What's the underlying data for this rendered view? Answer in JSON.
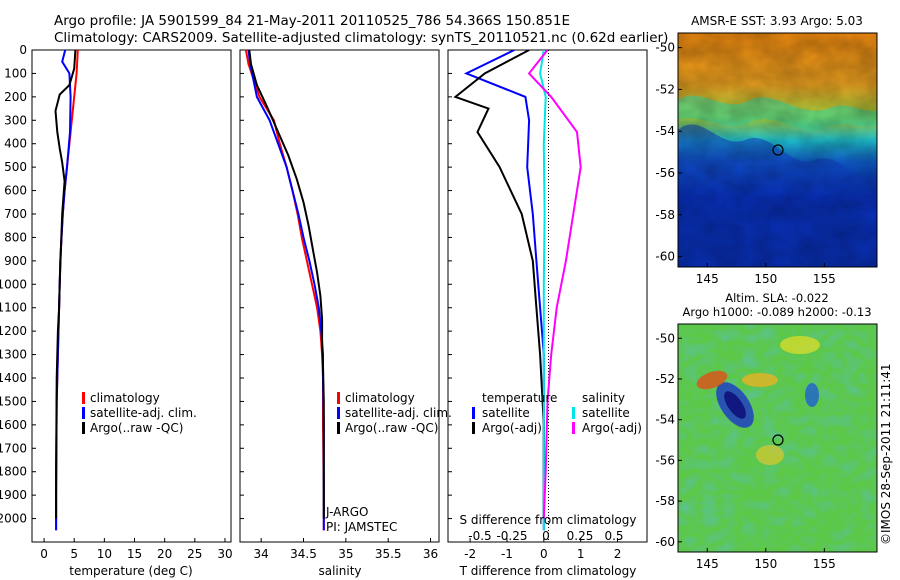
{
  "header": {
    "line1": "Argo profile: JA 5901599_84 21-May-2011 20110525_786 54.366S 150.851E",
    "line2": "Climatology: CARS2009. Satellite-adjusted climatology: synTS_20110521.nc (0.62d earlier)"
  },
  "credit": "©IMOS 28-Sep-2011 21:11:41",
  "colors": {
    "climatology": "#ff0000",
    "satellite": "#0000ff",
    "argo": "#000000",
    "salinity_satellite": "#00e6e6",
    "salinity_argo": "#ff00ff"
  },
  "chart_data": [
    {
      "type": "line",
      "name": "temperature",
      "xlabel": "temperature (deg C)",
      "ylabel": "",
      "xlim": [
        -2,
        31
      ],
      "ylim": [
        2100,
        0
      ],
      "xticks": [
        "0",
        "5",
        "10",
        "15",
        "20",
        "25",
        "30"
      ],
      "yticks": [
        "0",
        "100",
        "200",
        "300",
        "400",
        "500",
        "600",
        "700",
        "800",
        "900",
        "1000",
        "1100",
        "1200",
        "1300",
        "1400",
        "1500",
        "1600",
        "1700",
        "1800",
        "1900",
        "2000"
      ],
      "legend": [
        "climatology",
        "satellite-adj. clim.",
        "Argo(..raw -QC)"
      ],
      "series": [
        {
          "name": "climatology",
          "x": [
            5.6,
            5.4,
            5.0,
            4.6,
            4.2,
            3.8,
            3.4,
            3.1,
            2.9,
            2.7,
            2.6,
            2.5,
            2.4,
            2.3,
            2.2,
            2.1,
            2.05,
            2.0,
            2.0
          ],
          "y": [
            0,
            100,
            200,
            300,
            400,
            500,
            600,
            700,
            800,
            900,
            1000,
            1100,
            1200,
            1300,
            1400,
            1500,
            1700,
            1900,
            2050
          ]
        },
        {
          "name": "satellite-adj. clim.",
          "x": [
            3.5,
            3.0,
            4.2,
            4.4,
            4.3,
            3.8,
            3.4,
            3.1,
            2.9,
            2.7,
            2.6,
            2.5,
            2.4,
            2.3,
            2.2,
            2.1,
            2.05,
            2.0,
            2.0
          ],
          "y": [
            0,
            50,
            100,
            200,
            350,
            500,
            600,
            700,
            800,
            900,
            1000,
            1100,
            1200,
            1300,
            1400,
            1500,
            1700,
            1900,
            2050
          ]
        },
        {
          "name": "Argo(..raw -QC)",
          "x": [
            5.2,
            5.0,
            4.2,
            2.6,
            1.9,
            2.2,
            2.6,
            3.0,
            3.4,
            3.0,
            2.8,
            2.6,
            2.5,
            2.3,
            2.2,
            2.1,
            2.05,
            2.0,
            2.0
          ],
          "y": [
            0,
            80,
            150,
            190,
            260,
            350,
            420,
            480,
            560,
            700,
            850,
            1000,
            1100,
            1200,
            1300,
            1400,
            1600,
            1800,
            2000
          ]
        }
      ]
    },
    {
      "type": "line",
      "name": "salinity",
      "xlabel": "salinity",
      "ylabel": "",
      "xlim": [
        33.75,
        36.1
      ],
      "ylim": [
        2100,
        0
      ],
      "xticks": [
        "34",
        "34.5",
        "35",
        "35.5",
        "36"
      ],
      "legend": [
        "climatology",
        "satellite-adj. clim.",
        "Argo(..raw -QC)"
      ],
      "annotations": [
        "J-ARGO",
        "PI: JAMSTEC"
      ],
      "series": [
        {
          "name": "climatology",
          "x": [
            33.82,
            33.85,
            33.98,
            34.15,
            34.22,
            34.3,
            34.37,
            34.43,
            34.48,
            34.54,
            34.6,
            34.66,
            34.7,
            34.72,
            34.73,
            34.73,
            34.74,
            34.74
          ],
          "y": [
            0,
            60,
            200,
            300,
            400,
            500,
            600,
            700,
            800,
            900,
            1000,
            1100,
            1200,
            1300,
            1400,
            1600,
            1900,
            2050
          ]
        },
        {
          "name": "satellite-adj. clim.",
          "x": [
            33.85,
            33.87,
            33.95,
            34.1,
            34.2,
            34.3,
            34.37,
            34.44,
            34.5,
            34.57,
            34.63,
            34.68,
            34.71,
            34.73,
            34.73,
            34.74,
            34.74,
            34.74
          ],
          "y": [
            0,
            60,
            200,
            300,
            400,
            500,
            600,
            700,
            800,
            900,
            1000,
            1100,
            1200,
            1300,
            1400,
            1600,
            1900,
            2050
          ]
        },
        {
          "name": "Argo(..raw -QC)",
          "x": [
            33.86,
            33.88,
            33.95,
            34.08,
            34.2,
            34.32,
            34.42,
            34.5,
            34.56,
            34.61,
            34.66,
            34.7,
            34.72,
            34.72,
            34.73,
            34.74,
            34.74,
            34.74
          ],
          "y": [
            0,
            60,
            150,
            250,
            350,
            450,
            550,
            650,
            750,
            850,
            950,
            1050,
            1150,
            1250,
            1350,
            1500,
            1750,
            2000
          ]
        }
      ]
    },
    {
      "type": "line",
      "name": "difference",
      "xlabel": "T difference from climatology",
      "x2label": "S difference from climatology",
      "xlim": [
        -2.6,
        2.8
      ],
      "ylim": [
        2100,
        0
      ],
      "xticks": [
        "-2",
        "-1",
        "0",
        "1",
        "2"
      ],
      "x2ticks": [
        "-0.5",
        "-0.25",
        "0",
        "0.25",
        "0.5"
      ],
      "legend": [
        "temperature",
        "satellite",
        "Argo(-adj)",
        "salinity",
        "satellite",
        "Argo(-adj)"
      ],
      "series": [
        {
          "name": "temperature satellite",
          "x": [
            -0.8,
            -2.1,
            -0.5,
            -0.4,
            -0.45,
            -0.3,
            -0.2,
            -0.1,
            0.0,
            0.0,
            0.0,
            0.0
          ],
          "y": [
            0,
            100,
            200,
            300,
            500,
            700,
            900,
            1100,
            1300,
            1500,
            1800,
            2050
          ]
        },
        {
          "name": "temperature Argo(-adj)",
          "x": [
            -0.4,
            -1.6,
            -2.4,
            -1.5,
            -1.8,
            -1.2,
            -0.6,
            -0.3,
            -0.2,
            -0.1,
            0.0,
            0.0
          ],
          "y": [
            0,
            100,
            200,
            250,
            350,
            500,
            700,
            900,
            1100,
            1300,
            1600,
            2000
          ]
        },
        {
          "name": "salinity satellite",
          "x": [
            0.0,
            -0.1,
            0.05,
            0.0,
            0.02,
            0.0,
            0.0,
            0.0,
            0.0,
            0.0
          ],
          "y": [
            0,
            100,
            200,
            400,
            700,
            1000,
            1300,
            1600,
            1900,
            2050
          ]
        },
        {
          "name": "salinity Argo(-adj)",
          "x": [
            0.1,
            -0.4,
            0.2,
            0.9,
            1.0,
            0.8,
            0.6,
            0.35,
            0.2,
            0.1,
            0.05,
            0.0
          ],
          "y": [
            0,
            100,
            200,
            350,
            500,
            700,
            900,
            1100,
            1300,
            1500,
            1800,
            2000
          ]
        }
      ]
    },
    {
      "type": "heatmap",
      "name": "sst_map",
      "title": "AMSR-E SST: 3.93 Argo: 5.03",
      "xticks": [
        "145",
        "150",
        "155"
      ],
      "yticks": [
        "-50",
        "-52",
        "-54",
        "-56",
        "-58",
        "-60"
      ],
      "xlim": [
        142.5,
        159.5
      ],
      "ylim": [
        -60.5,
        -49.3
      ],
      "marker": {
        "lon": 150.851,
        "lat": -54.366
      }
    },
    {
      "type": "heatmap",
      "name": "sla_map",
      "title": "Altim. SLA: -0.022",
      "subtitle": "Argo h1000: -0.089 h2000: -0.13",
      "xticks": [
        "145",
        "150",
        "155"
      ],
      "yticks": [
        "-50",
        "-52",
        "-54",
        "-56",
        "-58",
        "-60"
      ],
      "xlim": [
        142.5,
        159.5
      ],
      "ylim": [
        -60.5,
        -49.3
      ],
      "marker": {
        "lon": 150.851,
        "lat": -54.366
      }
    }
  ]
}
